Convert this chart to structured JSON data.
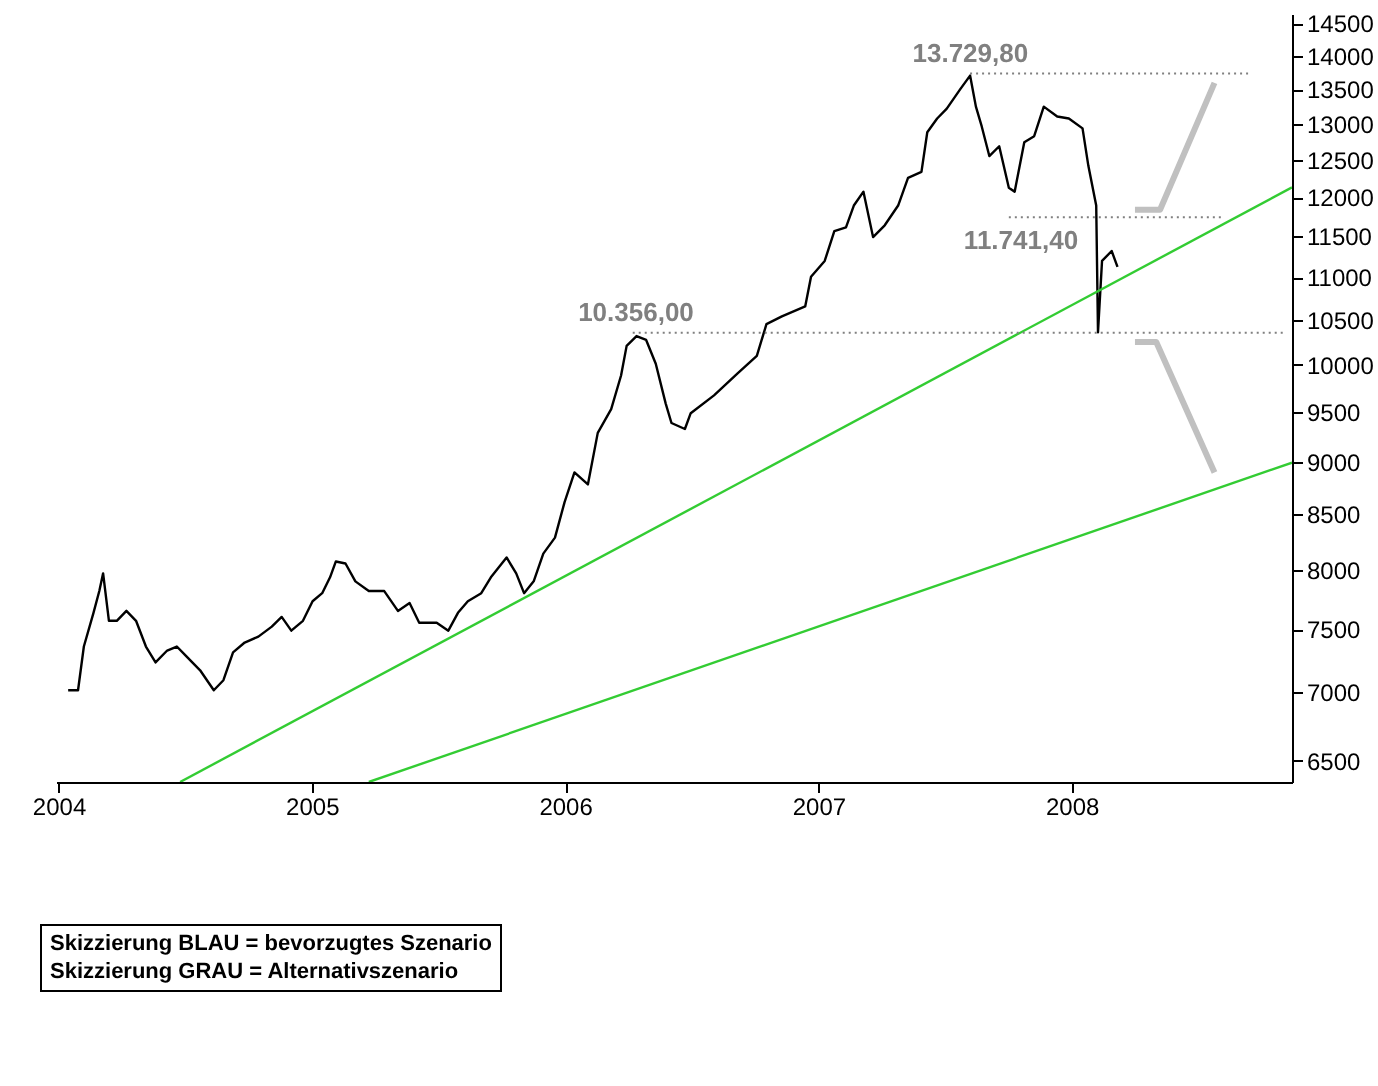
{
  "chart_data": {
    "type": "line",
    "log": "y",
    "xlim": [
      2003.99,
      2008.87
    ],
    "xticks": [
      2004,
      2005,
      2006,
      2007,
      2008
    ],
    "ylim": [
      6350,
      14650
    ],
    "yticks": [
      6500,
      7000,
      7500,
      8000,
      8500,
      9000,
      9500,
      10000,
      10500,
      11000,
      11500,
      12000,
      12500,
      13000,
      13500,
      14000,
      14500
    ],
    "series": [
      {
        "color": "#000000",
        "x": [
          2004.038,
          2004.077,
          2004.1,
          2004.138,
          2004.161,
          2004.176,
          2004.199,
          2004.23,
          2004.268,
          2004.306,
          2004.345,
          2004.383,
          2004.429,
          2004.467,
          2004.505,
          2004.559,
          2004.613,
          2004.651,
          2004.689,
          2004.735,
          2004.789,
          2004.842,
          2004.881,
          2004.919,
          2004.965,
          2005.003,
          2005.041,
          2005.072,
          2005.095,
          2005.133,
          2005.172,
          2005.225,
          2005.286,
          2005.34,
          2005.386,
          2005.424,
          2005.493,
          2005.539,
          2005.577,
          2005.616,
          2005.669,
          2005.707,
          2005.769,
          2005.807,
          2005.838,
          2005.876,
          2005.914,
          2005.96,
          2005.998,
          2006.037,
          2006.09,
          2006.129,
          2006.182,
          2006.221,
          2006.243,
          2006.282,
          2006.32,
          2006.358,
          2006.397,
          2006.42,
          2006.473,
          2006.496,
          2006.588,
          2006.68,
          2006.757,
          2006.795,
          2006.856,
          2006.948,
          2006.971,
          2007.025,
          2007.063,
          2007.109,
          2007.14,
          2007.178,
          2007.216,
          2007.262,
          2007.315,
          2007.354,
          2007.407,
          2007.43,
          2007.469,
          2007.507,
          2007.561,
          2007.599,
          2007.622,
          2007.645,
          2007.675,
          2007.714,
          2007.752,
          2007.775,
          2007.813,
          2007.852,
          2007.89,
          2007.943,
          2007.989,
          2008.043,
          2008.066,
          2008.097,
          2008.104,
          2008.12,
          2008.158,
          2008.181
        ],
        "values": [
          7017,
          7017,
          7359,
          7634,
          7817,
          7969,
          7568,
          7568,
          7650,
          7568,
          7359,
          7233,
          7327,
          7359,
          7280,
          7171,
          7017,
          7094,
          7312,
          7391,
          7439,
          7520,
          7600,
          7487,
          7568,
          7731,
          7799,
          7935,
          8073,
          8055,
          7900,
          7817,
          7817,
          7650,
          7716,
          7552,
          7552,
          7487,
          7634,
          7731,
          7799,
          7935,
          8108,
          7969,
          7799,
          7900,
          8142,
          8285,
          8612,
          8894,
          8779,
          9286,
          9529,
          9884,
          10208,
          10318,
          10274,
          10012,
          9589,
          9386,
          9325,
          9487,
          9673,
          9905,
          10098,
          10453,
          10542,
          10656,
          11006,
          11197,
          11565,
          11614,
          11893,
          12074,
          11491,
          11640,
          11893,
          12257,
          12336,
          12880,
          13075,
          13217,
          13503,
          13700,
          13245,
          12962,
          12551,
          12686,
          12126,
          12074,
          12741,
          12825,
          13245,
          13104,
          13075,
          12935,
          12418,
          11893,
          10360,
          11197,
          11319,
          11125
        ]
      },
      {
        "type": "line",
        "color": "#33cc33",
        "x": [
          2004.48,
          2008.87
        ],
        "values": [
          6350,
          12130
        ]
      },
      {
        "type": "line",
        "color": "#33cc33",
        "x": [
          2005.225,
          2008.87
        ],
        "values": [
          6350,
          8990
        ]
      },
      {
        "type": "line",
        "color": "#808080",
        "line_style": "dotted",
        "x": [
          2007.599,
          2008.709
        ],
        "values": [
          13729.8,
          13729.8
        ]
      },
      {
        "type": "line",
        "color": "#808080",
        "line_style": "dotted",
        "x": [
          2007.752,
          2008.594
        ],
        "values": [
          11741.4,
          11741.4
        ]
      },
      {
        "type": "line",
        "color": "#808080",
        "line_style": "dotted",
        "x": [
          2006.267,
          2008.847
        ],
        "values": [
          10356,
          10356
        ]
      },
      {
        "type": "line",
        "color": "#c0c0c0",
        "x": [
          2008.25,
          2008.349,
          2008.564
        ],
        "values": [
          11839,
          11839,
          13592
        ]
      },
      {
        "type": "line",
        "color": "#c0c0c0",
        "x": [
          2008.25,
          2008.334,
          2008.564
        ],
        "values": [
          10252,
          10252,
          8894
        ]
      }
    ],
    "annotations": [
      {
        "text": "13.729,80",
        "x": 2007.6,
        "y": 13729.8
      },
      {
        "text": "11.741,40",
        "x": 2007.8,
        "y": 11741.4
      },
      {
        "text": "10.356,00",
        "x": 2006.28,
        "y": 10356
      },
      "Skizzierung BLAU = bevorzugtes Szenario",
      "Skizzierung GRAU = Alternativszenario"
    ]
  }
}
